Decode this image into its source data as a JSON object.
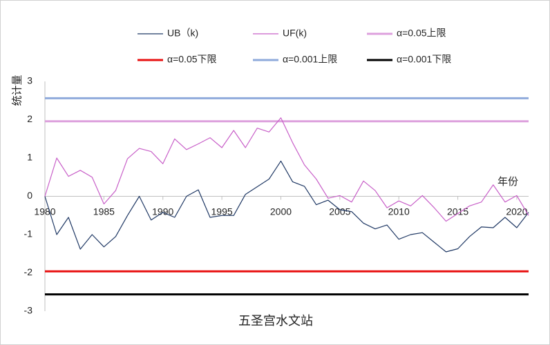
{
  "chart_data": {
    "type": "line",
    "title": "五圣宫水文站",
    "xlabel": "年份",
    "ylabel": "统计量",
    "xlim": [
      1980,
      2021
    ],
    "ylim": [
      -3,
      3
    ],
    "x_ticks": [
      1980,
      1985,
      1990,
      1995,
      2000,
      2005,
      2010,
      2015,
      2020
    ],
    "y_ticks": [
      3,
      2,
      1,
      0,
      -1,
      -2,
      -3
    ],
    "grid": false,
    "legend_position": "top",
    "x": [
      1980,
      1981,
      1982,
      1983,
      1984,
      1985,
      1986,
      1987,
      1988,
      1989,
      1990,
      1991,
      1992,
      1993,
      1994,
      1995,
      1996,
      1997,
      1998,
      1999,
      2000,
      2001,
      2002,
      2003,
      2004,
      2005,
      2006,
      2007,
      2008,
      2009,
      2010,
      2011,
      2012,
      2013,
      2014,
      2015,
      2016,
      2017,
      2018,
      2019,
      2020,
      2021
    ],
    "series": [
      {
        "name": "UB（k)",
        "color": "#1f3864",
        "values": [
          0,
          -1.0,
          -0.55,
          -1.38,
          -1.0,
          -1.32,
          -1.05,
          -0.5,
          0,
          -0.62,
          -0.42,
          -0.55,
          0,
          0.17,
          -0.55,
          -0.5,
          -0.5,
          0.05,
          0.25,
          0.45,
          0.92,
          0.38,
          0.26,
          -0.22,
          -0.1,
          -0.35,
          -0.4,
          -0.7,
          -0.85,
          -0.75,
          -1.12,
          -1.0,
          -0.95,
          -1.2,
          -1.45,
          -1.37,
          -1.05,
          -0.8,
          -0.82,
          -0.55,
          -0.82,
          -0.42
        ]
      },
      {
        "name": "UF(k)",
        "color": "#c85fc8",
        "values": [
          0,
          1.0,
          0.52,
          0.68,
          0.5,
          -0.2,
          0.15,
          0.98,
          1.25,
          1.17,
          0.85,
          1.5,
          1.22,
          1.37,
          1.53,
          1.27,
          1.72,
          1.27,
          1.78,
          1.68,
          2.05,
          1.4,
          0.82,
          0.45,
          -0.05,
          0.02,
          -0.15,
          0.4,
          0.15,
          -0.3,
          -0.12,
          -0.25,
          0.02,
          -0.3,
          -0.65,
          -0.45,
          -0.25,
          -0.15,
          0.3,
          -0.15,
          0.02,
          -0.5
        ]
      }
    ],
    "reference_lines": [
      {
        "name": "α=0.05上限",
        "value": 1.96,
        "color": "#dda0dd"
      },
      {
        "name": "α=0.05下限",
        "value": -1.96,
        "color": "#e81010"
      },
      {
        "name": "α=0.001上限",
        "value": 2.56,
        "color": "#8eaadb"
      },
      {
        "name": "α=0.001下限",
        "value": -2.56,
        "color": "#000000"
      }
    ]
  }
}
